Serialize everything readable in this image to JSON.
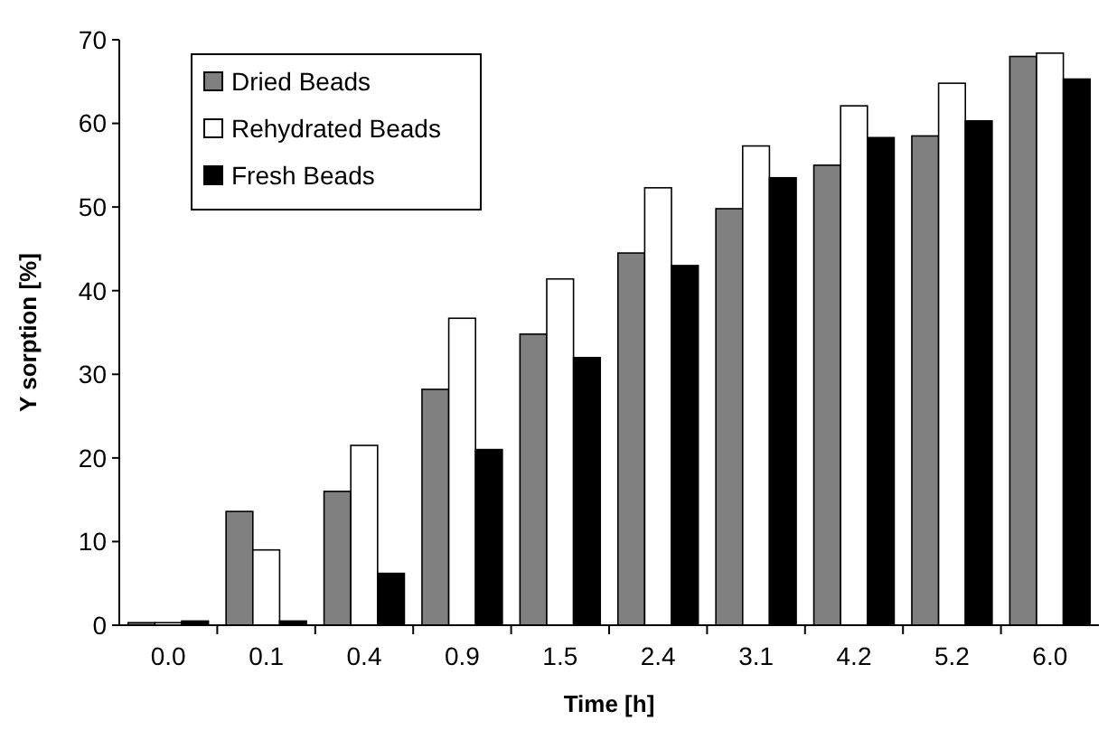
{
  "chart_data": {
    "type": "bar",
    "xlabel": "Time [h]",
    "ylabel": "Y sorption [%]",
    "categories": [
      "0.0",
      "0.1",
      "0.4",
      "0.9",
      "1.5",
      "2.4",
      "3.1",
      "4.2",
      "5.2",
      "6.0"
    ],
    "series": [
      {
        "name": "Dried Beads",
        "color": "#808080",
        "values": [
          0.3,
          13.6,
          16,
          28.2,
          34.8,
          44.5,
          49.8,
          55,
          58.5,
          68
        ]
      },
      {
        "name": "Rehydrated Beads",
        "color": "#ffffff",
        "values": [
          0.3,
          9,
          21.5,
          36.7,
          41.4,
          52.3,
          57.3,
          62.1,
          64.8,
          68.4
        ]
      },
      {
        "name": "Fresh Beads",
        "color": "#000000",
        "values": [
          0.5,
          0.5,
          6.2,
          21,
          32,
          43,
          53.5,
          58.3,
          60.3,
          65.3
        ]
      }
    ],
    "ylim": [
      0,
      70
    ],
    "yticks": [
      0,
      10,
      20,
      30,
      40,
      50,
      60,
      70
    ],
    "grid": false,
    "legend": "top left"
  }
}
